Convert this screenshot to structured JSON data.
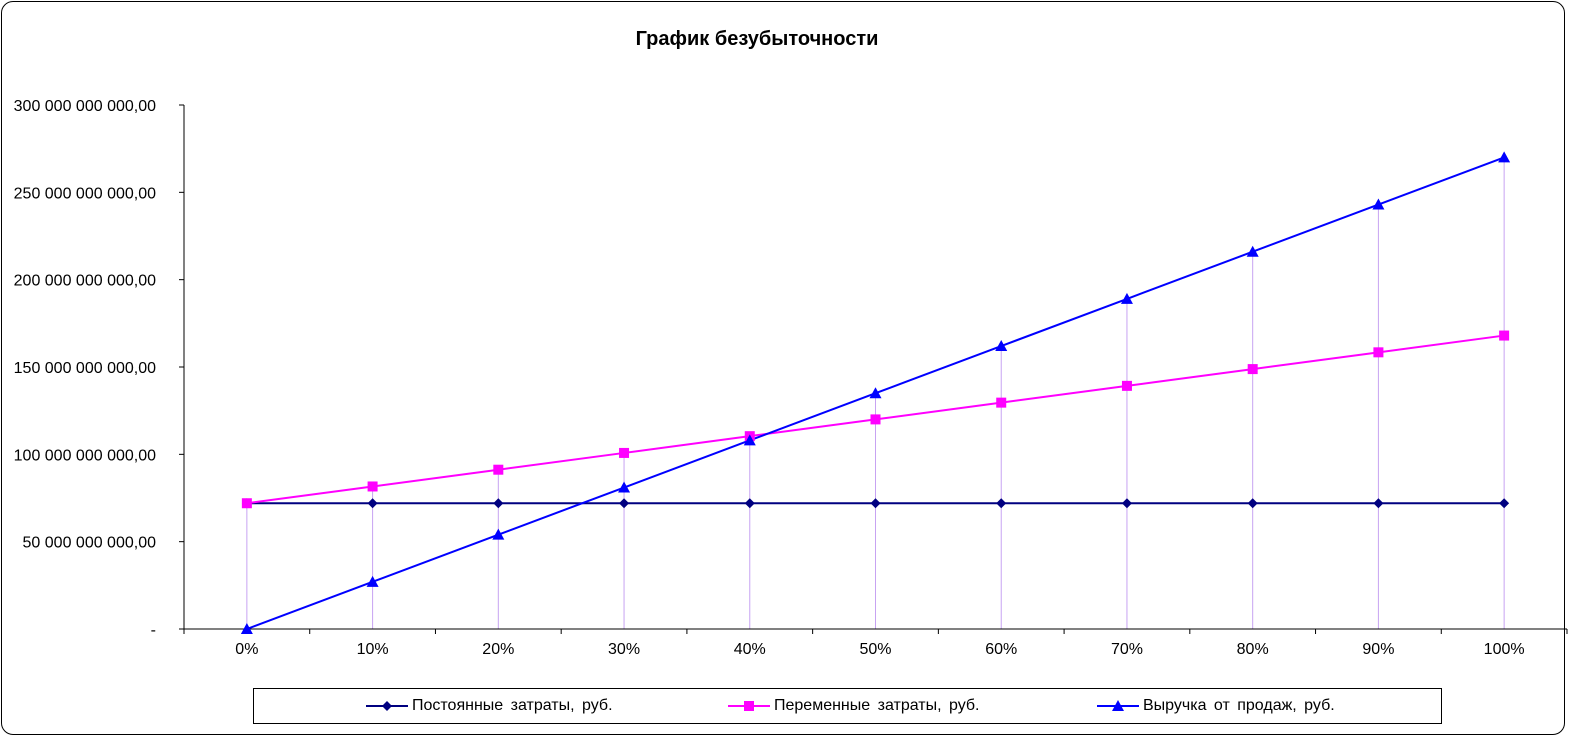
{
  "chart_data": {
    "type": "line",
    "title": "График безубыточности",
    "xlabel": "",
    "ylabel": "",
    "categories": [
      "0%",
      "10%",
      "20%",
      "30%",
      "40%",
      "50%",
      "60%",
      "70%",
      "80%",
      "90%",
      "100%"
    ],
    "y_tick_labels": [
      "-",
      "50 000 000 000,00",
      "100 000 000 000,00",
      "150 000 000 000,00",
      "200 000 000 000,00",
      "250 000 000 000,00",
      "300 000 000 000,00"
    ],
    "y_ticks": [
      0,
      50000000000,
      100000000000,
      150000000000,
      200000000000,
      250000000000,
      300000000000
    ],
    "ylim": [
      0,
      300000000000
    ],
    "grid": false,
    "drop_lines": true,
    "legend_position": "bottom",
    "series": [
      {
        "name": "Постоянные затраты, руб.",
        "color": "#000080",
        "marker": "diamond",
        "values": [
          72000000000,
          72000000000,
          72000000000,
          72000000000,
          72000000000,
          72000000000,
          72000000000,
          72000000000,
          72000000000,
          72000000000,
          72000000000
        ]
      },
      {
        "name": "Переменные затраты, руб.",
        "color": "#ff00ff",
        "marker": "square",
        "values": [
          72000000000,
          81600000000,
          91200000000,
          100800000000,
          110400000000,
          120000000000,
          129600000000,
          139200000000,
          148800000000,
          158400000000,
          168000000000
        ]
      },
      {
        "name": "Выручка от продаж, руб.",
        "color": "#0000ff",
        "marker": "triangle",
        "values": [
          0,
          27000000000,
          54000000000,
          81000000000,
          108000000000,
          135000000000,
          162000000000,
          189000000000,
          216000000000,
          243000000000,
          270000000000
        ]
      }
    ]
  }
}
